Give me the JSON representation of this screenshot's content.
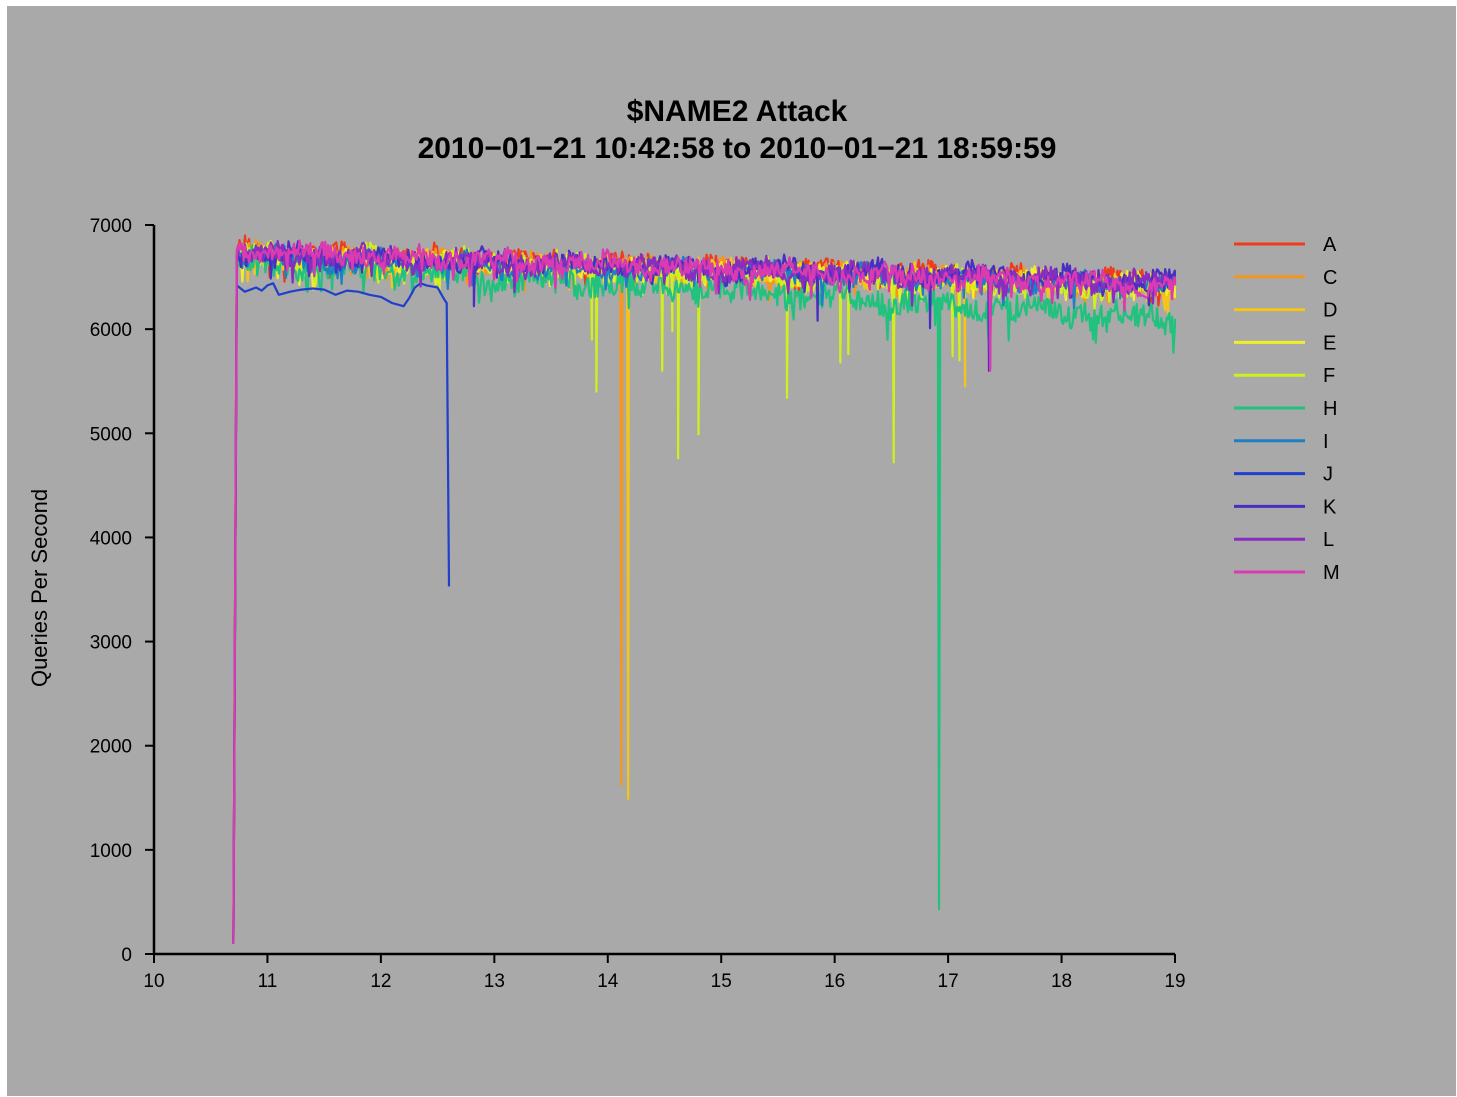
{
  "chart_data": {
    "type": "line",
    "title": "$NAME2 Attack",
    "subtitle": "2010−01−21 10:42:58 to 2010−01−21 18:59:59",
    "xlabel": "",
    "ylabel": "Queries Per Second",
    "xlim": [
      10,
      19
    ],
    "ylim": [
      0,
      7000
    ],
    "xticks": [
      "10",
      "11",
      "12",
      "13",
      "14",
      "15",
      "16",
      "17",
      "18",
      "19"
    ],
    "yticks": [
      "0",
      "1000",
      "2000",
      "3000",
      "4000",
      "5000",
      "6000",
      "7000"
    ],
    "grid": false,
    "legend_position": "right",
    "background_color": "#a9a9a9",
    "series": [
      {
        "name": "A",
        "color": "#ee3b1b",
        "base": 6650,
        "amp": 90,
        "seed": 11,
        "points": [
          [
            10.7,
            100
          ],
          [
            10.73,
            6750
          ],
          [
            11.02,
            6500
          ],
          [
            11.03,
            6750
          ],
          [
            19.0,
            6450
          ]
        ],
        "dips": []
      },
      {
        "name": "C",
        "color": "#f5961d",
        "base": 6600,
        "amp": 90,
        "seed": 23,
        "points": [
          [
            10.7,
            100
          ],
          [
            10.73,
            6720
          ],
          [
            14.11,
            6600
          ],
          [
            14.12,
            1620
          ],
          [
            14.13,
            6550
          ],
          [
            19.0,
            6420
          ]
        ],
        "dips": []
      },
      {
        "name": "D",
        "color": "#f5c518",
        "base": 6600,
        "amp": 90,
        "seed": 37,
        "points": [
          [
            10.7,
            100
          ],
          [
            10.73,
            6700
          ],
          [
            14.17,
            6550
          ],
          [
            14.18,
            1490
          ],
          [
            14.2,
            6500
          ],
          [
            19.0,
            6420
          ]
        ],
        "dips": [
          [
            17.15,
            5450
          ]
        ]
      },
      {
        "name": "E",
        "color": "#f2ee2a",
        "base": 6600,
        "amp": 90,
        "seed": 41,
        "points": [
          [
            10.7,
            100
          ],
          [
            10.73,
            6700
          ],
          [
            19.0,
            6420
          ]
        ],
        "dips": []
      },
      {
        "name": "F",
        "color": "#d0f01e",
        "base": 6550,
        "amp": 110,
        "seed": 53,
        "points": [
          [
            10.7,
            100
          ],
          [
            10.73,
            6700
          ],
          [
            19.0,
            6400
          ]
        ],
        "dips": [
          [
            13.86,
            5900
          ],
          [
            13.9,
            5400
          ],
          [
            14.48,
            5600
          ],
          [
            14.57,
            5980
          ],
          [
            14.62,
            4760
          ],
          [
            14.8,
            4990
          ],
          [
            15.58,
            5340
          ],
          [
            16.05,
            5680
          ],
          [
            16.12,
            5760
          ],
          [
            16.52,
            4720
          ],
          [
            17.04,
            5740
          ],
          [
            17.1,
            5700
          ]
        ]
      },
      {
        "name": "H",
        "color": "#21c27e",
        "base": 6450,
        "amp": 120,
        "seed": 67,
        "points": [
          [
            10.7,
            100
          ],
          [
            10.73,
            6650
          ],
          [
            16.91,
            6300
          ],
          [
            16.92,
            430
          ],
          [
            16.93,
            6300
          ],
          [
            19.0,
            6100
          ]
        ],
        "dips": []
      },
      {
        "name": "I",
        "color": "#1f7fc4",
        "base": 6600,
        "amp": 90,
        "seed": 71,
        "points": [
          [
            10.7,
            100
          ],
          [
            10.73,
            6700
          ],
          [
            19.0,
            6420
          ]
        ],
        "dips": []
      },
      {
        "name": "J",
        "color": "#1f3fcc",
        "base": 0,
        "amp": 0,
        "seed": 0,
        "points": [
          [
            10.7,
            100
          ],
          [
            10.73,
            6420
          ],
          [
            10.8,
            6360
          ],
          [
            10.9,
            6400
          ],
          [
            10.95,
            6370
          ],
          [
            11.0,
            6420
          ],
          [
            11.05,
            6440
          ],
          [
            11.1,
            6330
          ],
          [
            11.2,
            6360
          ],
          [
            11.3,
            6380
          ],
          [
            11.4,
            6390
          ],
          [
            11.5,
            6380
          ],
          [
            11.6,
            6330
          ],
          [
            11.7,
            6370
          ],
          [
            11.8,
            6360
          ],
          [
            11.9,
            6330
          ],
          [
            12.0,
            6310
          ],
          [
            12.1,
            6250
          ],
          [
            12.2,
            6220
          ],
          [
            12.25,
            6300
          ],
          [
            12.3,
            6400
          ],
          [
            12.35,
            6440
          ],
          [
            12.4,
            6420
          ],
          [
            12.45,
            6410
          ],
          [
            12.5,
            6400
          ],
          [
            12.55,
            6300
          ],
          [
            12.58,
            6250
          ],
          [
            12.6,
            3530
          ]
        ],
        "dips": []
      },
      {
        "name": "K",
        "color": "#4a2ec2",
        "base": 6620,
        "amp": 90,
        "seed": 83,
        "points": [
          [
            10.7,
            100
          ],
          [
            10.73,
            6720
          ],
          [
            19.0,
            6460
          ]
        ],
        "dips": [
          [
            12.82,
            6220
          ],
          [
            15.85,
            6080
          ],
          [
            16.84,
            6010
          ],
          [
            17.36,
            5600
          ]
        ]
      },
      {
        "name": "L",
        "color": "#8a2cc0",
        "base": 6620,
        "amp": 90,
        "seed": 97,
        "points": [
          [
            10.7,
            100
          ],
          [
            10.73,
            6720
          ],
          [
            19.0,
            6440
          ]
        ],
        "dips": [
          [
            17.37,
            5620
          ]
        ]
      },
      {
        "name": "M",
        "color": "#db3bb0",
        "base": 6650,
        "amp": 85,
        "seed": 101,
        "points": [
          [
            10.7,
            100
          ],
          [
            10.73,
            6760
          ],
          [
            19.0,
            6420
          ]
        ],
        "dips": [
          [
            17.37,
            5600
          ]
        ]
      }
    ]
  }
}
